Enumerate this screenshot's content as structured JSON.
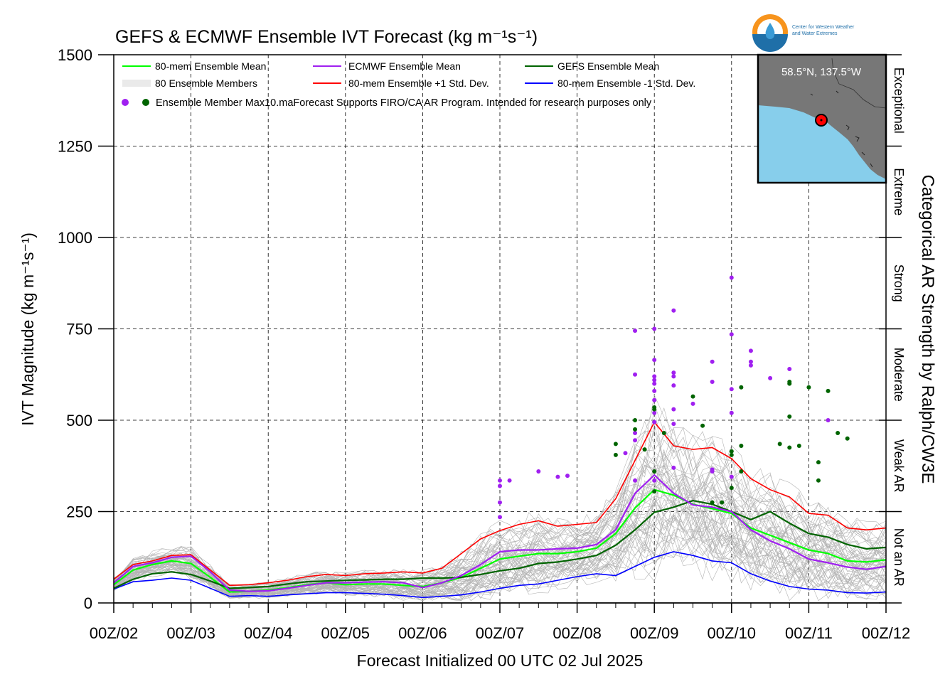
{
  "chart_data": {
    "type": "line",
    "title": "GEFS & ECMWF Ensemble IVT Forecast (kg m⁻¹s⁻¹)",
    "xlabel": "Forecast Initialized 00 UTC 02 Jul 2025",
    "ylabel": "IVT Magnitude (kg m⁻¹s⁻¹)",
    "right_label": "Categorical AR Strength by Ralph/CW3E",
    "ylim": [
      0,
      1500
    ],
    "xlim": [
      0,
      240
    ],
    "grid": true,
    "legend_position": "top-left",
    "x_ticks": [
      {
        "x": 0,
        "label": "00Z/02"
      },
      {
        "x": 24,
        "label": "00Z/03"
      },
      {
        "x": 48,
        "label": "00Z/04"
      },
      {
        "x": 72,
        "label": "00Z/05"
      },
      {
        "x": 96,
        "label": "00Z/06"
      },
      {
        "x": 120,
        "label": "00Z/07"
      },
      {
        "x": 144,
        "label": "00Z/08"
      },
      {
        "x": 168,
        "label": "00Z/09"
      },
      {
        "x": 192,
        "label": "00Z/10"
      },
      {
        "x": 216,
        "label": "00Z/11"
      },
      {
        "x": 240,
        "label": "00Z/12"
      }
    ],
    "y_ticks": [
      0,
      250,
      500,
      750,
      1000,
      1250,
      1500
    ],
    "categories": [
      {
        "label": "Not an AR",
        "min": 0,
        "max": 250
      },
      {
        "label": "Weak AR",
        "min": 250,
        "max": 500
      },
      {
        "label": "Moderate",
        "min": 500,
        "max": 750
      },
      {
        "label": "Strong",
        "min": 750,
        "max": 1000
      },
      {
        "label": "Extreme",
        "min": 1000,
        "max": 1250
      },
      {
        "label": "Exceptional",
        "min": 1250,
        "max": 1500
      }
    ],
    "series": [
      {
        "name": "80-mem Ensemble Mean",
        "color": "#00ff00",
        "width": 2.2,
        "x": [
          0,
          6,
          12,
          18,
          24,
          30,
          36,
          42,
          48,
          54,
          60,
          66,
          72,
          78,
          84,
          90,
          96,
          102,
          108,
          114,
          120,
          126,
          132,
          138,
          144,
          150,
          156,
          162,
          168,
          174,
          180,
          186,
          192,
          198,
          204,
          210,
          216,
          222,
          228,
          234,
          240
        ],
        "values": [
          50,
          90,
          105,
          115,
          108,
          70,
          30,
          32,
          35,
          42,
          50,
          55,
          50,
          52,
          52,
          48,
          45,
          55,
          70,
          95,
          120,
          128,
          135,
          135,
          140,
          150,
          190,
          260,
          310,
          295,
          270,
          258,
          245,
          205,
          185,
          165,
          145,
          135,
          115,
          112,
          118
        ]
      },
      {
        "name": "ECMWF Ensemble Mean",
        "color": "#a020f0",
        "width": 2.2,
        "x": [
          0,
          6,
          12,
          18,
          24,
          30,
          36,
          42,
          48,
          54,
          60,
          66,
          72,
          78,
          84,
          90,
          96,
          102,
          108,
          114,
          120,
          126,
          132,
          138,
          144,
          150,
          156,
          162,
          168,
          174,
          180,
          186,
          192,
          198,
          204,
          210,
          216,
          222,
          228,
          234,
          240
        ],
        "values": [
          55,
          100,
          110,
          125,
          128,
          85,
          35,
          32,
          33,
          40,
          48,
          55,
          55,
          57,
          58,
          55,
          42,
          55,
          75,
          105,
          140,
          145,
          145,
          148,
          150,
          160,
          200,
          300,
          350,
          300,
          268,
          262,
          250,
          200,
          170,
          148,
          120,
          110,
          98,
          92,
          100
        ]
      },
      {
        "name": "GEFS Ensemble Mean",
        "color": "#006400",
        "width": 2.2,
        "x": [
          0,
          6,
          12,
          18,
          24,
          30,
          36,
          42,
          48,
          54,
          60,
          66,
          72,
          78,
          84,
          90,
          96,
          102,
          108,
          114,
          120,
          126,
          132,
          138,
          144,
          150,
          156,
          162,
          168,
          174,
          180,
          186,
          192,
          198,
          204,
          210,
          216,
          222,
          228,
          234,
          240
        ],
        "values": [
          40,
          65,
          80,
          85,
          78,
          60,
          40,
          42,
          45,
          52,
          58,
          60,
          62,
          63,
          65,
          65,
          68,
          68,
          70,
          78,
          88,
          95,
          108,
          112,
          120,
          130,
          158,
          200,
          248,
          262,
          280,
          270,
          250,
          228,
          250,
          218,
          190,
          180,
          160,
          148,
          152
        ]
      },
      {
        "name": "80-mem Ensemble +1 Std. Dev.",
        "color": "#ff0000",
        "width": 1.6,
        "x": [
          0,
          6,
          12,
          18,
          24,
          30,
          36,
          42,
          48,
          54,
          60,
          66,
          72,
          78,
          84,
          90,
          96,
          102,
          108,
          114,
          120,
          126,
          132,
          138,
          144,
          150,
          156,
          162,
          168,
          174,
          180,
          186,
          192,
          198,
          204,
          210,
          216,
          222,
          228,
          234,
          240
        ],
        "values": [
          65,
          105,
          115,
          130,
          132,
          90,
          48,
          50,
          55,
          62,
          72,
          78,
          75,
          80,
          82,
          85,
          82,
          95,
          135,
          175,
          198,
          215,
          225,
          210,
          215,
          220,
          285,
          390,
          495,
          430,
          420,
          425,
          395,
          340,
          310,
          290,
          245,
          240,
          205,
          200,
          205
        ]
      },
      {
        "name": "80-mem Ensemble -1 Std. Dev.",
        "color": "#0000ff",
        "width": 1.6,
        "x": [
          0,
          6,
          12,
          18,
          24,
          30,
          36,
          42,
          48,
          54,
          60,
          66,
          72,
          78,
          84,
          90,
          96,
          102,
          108,
          114,
          120,
          126,
          132,
          138,
          144,
          150,
          156,
          162,
          168,
          174,
          180,
          186,
          192,
          198,
          204,
          210,
          216,
          222,
          228,
          234,
          240
        ],
        "values": [
          38,
          58,
          62,
          68,
          62,
          40,
          18,
          20,
          18,
          22,
          25,
          28,
          28,
          26,
          24,
          20,
          15,
          18,
          22,
          30,
          40,
          48,
          52,
          62,
          72,
          80,
          75,
          100,
          125,
          140,
          130,
          115,
          110,
          80,
          60,
          45,
          38,
          35,
          28,
          27,
          30
        ]
      }
    ],
    "max_points_ecmwf": [
      {
        "x": 120,
        "y": 335
      },
      {
        "x": 120,
        "y": 320
      },
      {
        "x": 120,
        "y": 275
      },
      {
        "x": 120,
        "y": 235
      },
      {
        "x": 123,
        "y": 335
      },
      {
        "x": 132,
        "y": 360
      },
      {
        "x": 138,
        "y": 345
      },
      {
        "x": 141,
        "y": 348
      },
      {
        "x": 159,
        "y": 410
      },
      {
        "x": 162,
        "y": 745
      },
      {
        "x": 162,
        "y": 625
      },
      {
        "x": 162,
        "y": 465
      },
      {
        "x": 162,
        "y": 445
      },
      {
        "x": 162,
        "y": 335
      },
      {
        "x": 168,
        "y": 750
      },
      {
        "x": 168,
        "y": 665
      },
      {
        "x": 168,
        "y": 620
      },
      {
        "x": 168,
        "y": 610
      },
      {
        "x": 168,
        "y": 600
      },
      {
        "x": 168,
        "y": 580
      },
      {
        "x": 168,
        "y": 555
      },
      {
        "x": 168,
        "y": 520
      },
      {
        "x": 168,
        "y": 495
      },
      {
        "x": 168,
        "y": 335
      },
      {
        "x": 174,
        "y": 800
      },
      {
        "x": 174,
        "y": 630
      },
      {
        "x": 174,
        "y": 620
      },
      {
        "x": 174,
        "y": 595
      },
      {
        "x": 174,
        "y": 530
      },
      {
        "x": 174,
        "y": 490
      },
      {
        "x": 174,
        "y": 370
      },
      {
        "x": 180,
        "y": 545
      },
      {
        "x": 186,
        "y": 660
      },
      {
        "x": 186,
        "y": 605
      },
      {
        "x": 186,
        "y": 365
      },
      {
        "x": 186,
        "y": 360
      },
      {
        "x": 192,
        "y": 890
      },
      {
        "x": 192,
        "y": 735
      },
      {
        "x": 192,
        "y": 585
      },
      {
        "x": 192,
        "y": 520
      },
      {
        "x": 192,
        "y": 345
      },
      {
        "x": 198,
        "y": 690
      },
      {
        "x": 198,
        "y": 660
      },
      {
        "x": 198,
        "y": 650
      },
      {
        "x": 204,
        "y": 615
      },
      {
        "x": 210,
        "y": 640
      },
      {
        "x": 222,
        "y": 500
      }
    ],
    "max_points_gefs": [
      {
        "x": 156,
        "y": 435
      },
      {
        "x": 156,
        "y": 405
      },
      {
        "x": 162,
        "y": 500
      },
      {
        "x": 162,
        "y": 475
      },
      {
        "x": 165,
        "y": 420
      },
      {
        "x": 168,
        "y": 535
      },
      {
        "x": 168,
        "y": 530
      },
      {
        "x": 168,
        "y": 360
      },
      {
        "x": 168,
        "y": 305
      },
      {
        "x": 171,
        "y": 465
      },
      {
        "x": 180,
        "y": 565
      },
      {
        "x": 183,
        "y": 485
      },
      {
        "x": 186,
        "y": 275
      },
      {
        "x": 189,
        "y": 275
      },
      {
        "x": 192,
        "y": 415
      },
      {
        "x": 192,
        "y": 405
      },
      {
        "x": 192,
        "y": 315
      },
      {
        "x": 195,
        "y": 590
      },
      {
        "x": 195,
        "y": 430
      },
      {
        "x": 195,
        "y": 360
      },
      {
        "x": 207,
        "y": 435
      },
      {
        "x": 210,
        "y": 605
      },
      {
        "x": 210,
        "y": 600
      },
      {
        "x": 210,
        "y": 425
      },
      {
        "x": 210,
        "y": 510
      },
      {
        "x": 213,
        "y": 430
      },
      {
        "x": 216,
        "y": 590
      },
      {
        "x": 219,
        "y": 385
      },
      {
        "x": 219,
        "y": 335
      },
      {
        "x": 222,
        "y": 580
      },
      {
        "x": 225,
        "y": 465
      },
      {
        "x": 228,
        "y": 450
      }
    ],
    "members_band": {
      "x": [
        0,
        24,
        48,
        72,
        96,
        120,
        144,
        168,
        180,
        192,
        204,
        216,
        228,
        240
      ]
    }
  },
  "legend": {
    "items": [
      {
        "label": "80-mem Ensemble Mean",
        "color": "#00ff00",
        "kind": "line"
      },
      {
        "label": "ECMWF Ensemble Mean",
        "color": "#a020f0",
        "kind": "line"
      },
      {
        "label": "GEFS Ensemble Mean",
        "color": "#006400",
        "kind": "line"
      },
      {
        "label": "80 Ensemble Members",
        "color": "#aaaaaa",
        "kind": "members"
      },
      {
        "label": "80-mem Ensemble +1 Std. Dev.",
        "color": "#ff0000",
        "kind": "line"
      },
      {
        "label": "80-mem Ensemble -1 Std. Dev.",
        "color": "#0000ff",
        "kind": "line"
      }
    ],
    "dots_label": "Ensemble Member Max",
    "note": "10.maForecast Supports FIRO/CA AR Program. Intended for research purposes only"
  },
  "inset": {
    "location": "58.5°N, 137.5°W",
    "land_color": "#777777",
    "water_color": "#87ceeb",
    "marker_color": "#ff0000"
  },
  "logo": {
    "line1": "Center for Western Weather",
    "line2": "and Water Extremes"
  },
  "colors": {
    "grid": "#000000",
    "ecmwf_dot": "#a020f0",
    "gefs_dot": "#006400",
    "member": "#b3b3b3"
  }
}
